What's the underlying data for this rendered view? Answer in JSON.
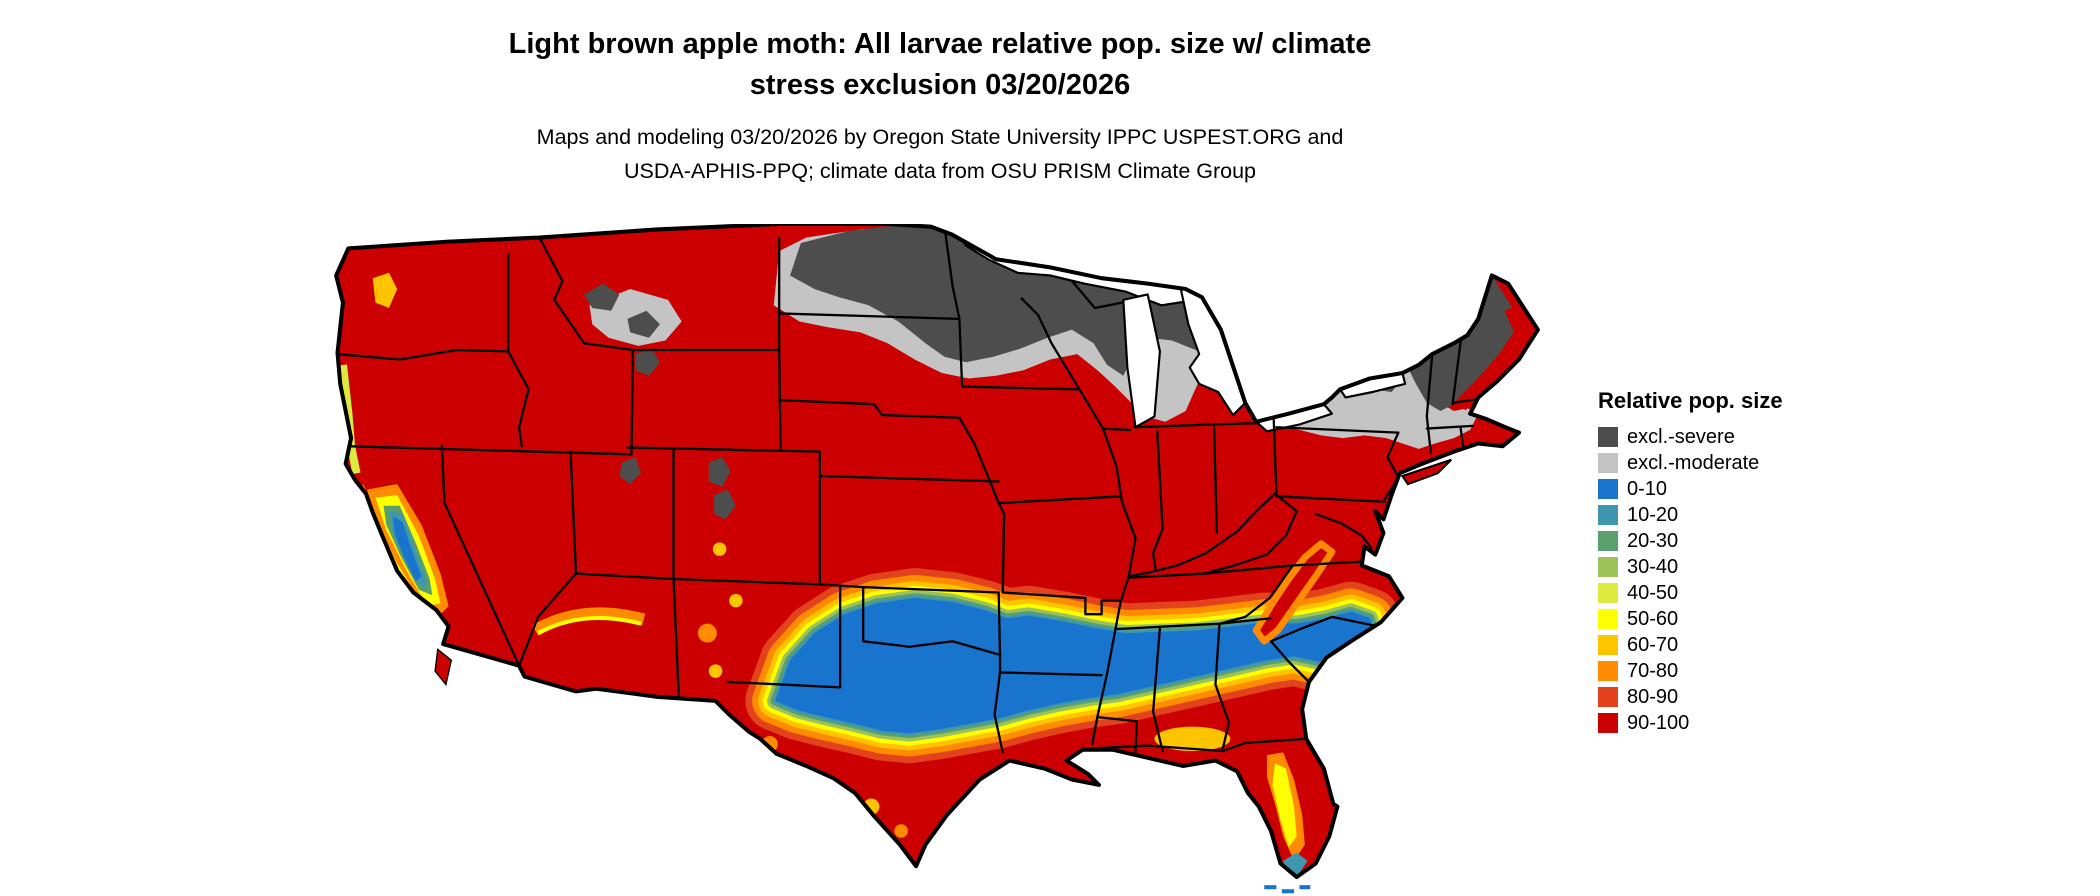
{
  "title": {
    "line1": "Light brown apple moth: All larvae relative pop. size w/ climate",
    "line2": "stress exclusion 03/20/2026"
  },
  "subtitle": {
    "line1": "Maps and modeling 03/20/2026 by Oregon State University IPPC USPEST.ORG and",
    "line2": "USDA-APHIS-PPQ; climate data from OSU PRISM Climate Group"
  },
  "legend": {
    "title": "Relative pop. size",
    "items": [
      {
        "label": "excl.-severe",
        "color": "#4d4d4d"
      },
      {
        "label": "excl.-moderate",
        "color": "#c4c4c4"
      },
      {
        "label": "0-10",
        "color": "#1874cd"
      },
      {
        "label": "10-20",
        "color": "#3e97ae"
      },
      {
        "label": "20-30",
        "color": "#5aa06e"
      },
      {
        "label": "30-40",
        "color": "#9cc25a"
      },
      {
        "label": "40-50",
        "color": "#dcea3f"
      },
      {
        "label": "50-60",
        "color": "#ffff00"
      },
      {
        "label": "60-70",
        "color": "#ffc400"
      },
      {
        "label": "70-80",
        "color": "#ff8c00"
      },
      {
        "label": "80-90",
        "color": "#e2431c"
      },
      {
        "label": "90-100",
        "color": "#cc0000"
      }
    ]
  }
}
